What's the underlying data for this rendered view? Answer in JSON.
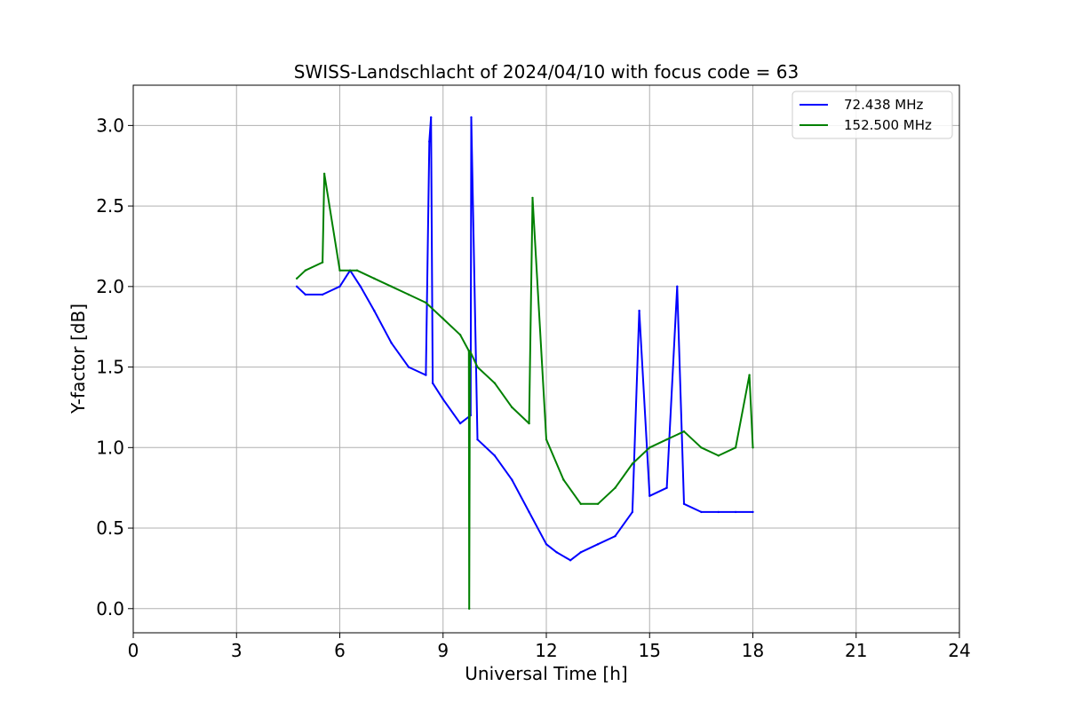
{
  "chart_data": {
    "type": "line",
    "title": "SWISS-Landschlacht of 2024/04/10 with focus code = 63",
    "xlabel": "Universal Time [h]",
    "ylabel": "Y-factor [dB]",
    "xlim": [
      0,
      24
    ],
    "ylim": [
      -0.15,
      3.25
    ],
    "xticks": [
      0,
      3,
      6,
      9,
      12,
      15,
      18,
      21,
      24
    ],
    "xtick_labels": [
      "0",
      "3",
      "6",
      "9",
      "12",
      "15",
      "18",
      "21",
      "24"
    ],
    "yticks": [
      0.0,
      0.5,
      1.0,
      1.5,
      2.0,
      2.5,
      3.0
    ],
    "ytick_labels": [
      "0.0",
      "0.5",
      "1.0",
      "1.5",
      "2.0",
      "2.5",
      "3.0"
    ],
    "grid": true,
    "legend_position": "top-right",
    "series": [
      {
        "name": "72.438 MHz",
        "color": "#0000ff",
        "x": [
          4.75,
          5.0,
          5.5,
          6.0,
          6.3,
          6.6,
          7.0,
          7.5,
          8.0,
          8.5,
          8.6,
          8.65,
          8.7,
          9.0,
          9.5,
          9.8,
          9.82,
          10.0,
          10.5,
          11.0,
          11.5,
          12.0,
          12.3,
          12.7,
          13.0,
          13.5,
          14.0,
          14.5,
          14.7,
          15.0,
          15.5,
          15.8,
          16.0,
          16.5,
          17.0,
          17.5,
          18.0
        ],
        "y": [
          2.0,
          1.95,
          1.95,
          2.0,
          2.1,
          2.0,
          1.85,
          1.65,
          1.5,
          1.45,
          2.9,
          3.05,
          1.4,
          1.3,
          1.15,
          1.2,
          3.05,
          1.05,
          0.95,
          0.8,
          0.6,
          0.4,
          0.35,
          0.3,
          0.35,
          0.4,
          0.45,
          0.6,
          1.85,
          0.7,
          0.75,
          2.0,
          0.65,
          0.6,
          0.6,
          0.6,
          0.6
        ]
      },
      {
        "name": "152.500 MHz",
        "color": "#008000",
        "x": [
          4.75,
          5.0,
          5.5,
          5.55,
          6.0,
          6.5,
          7.0,
          7.5,
          8.0,
          8.5,
          9.0,
          9.5,
          9.75,
          9.76,
          9.78,
          10.0,
          10.5,
          11.0,
          11.5,
          11.6,
          12.0,
          12.5,
          13.0,
          13.5,
          14.0,
          14.5,
          15.0,
          15.5,
          16.0,
          16.5,
          17.0,
          17.5,
          17.9,
          18.0
        ],
        "y": [
          2.05,
          2.1,
          2.15,
          2.7,
          2.1,
          2.1,
          2.05,
          2.0,
          1.95,
          1.9,
          1.8,
          1.7,
          1.6,
          0.0,
          1.6,
          1.5,
          1.4,
          1.25,
          1.15,
          2.55,
          1.05,
          0.8,
          0.65,
          0.65,
          0.75,
          0.9,
          1.0,
          1.05,
          1.1,
          1.0,
          0.95,
          1.0,
          1.45,
          1.0
        ]
      }
    ]
  }
}
